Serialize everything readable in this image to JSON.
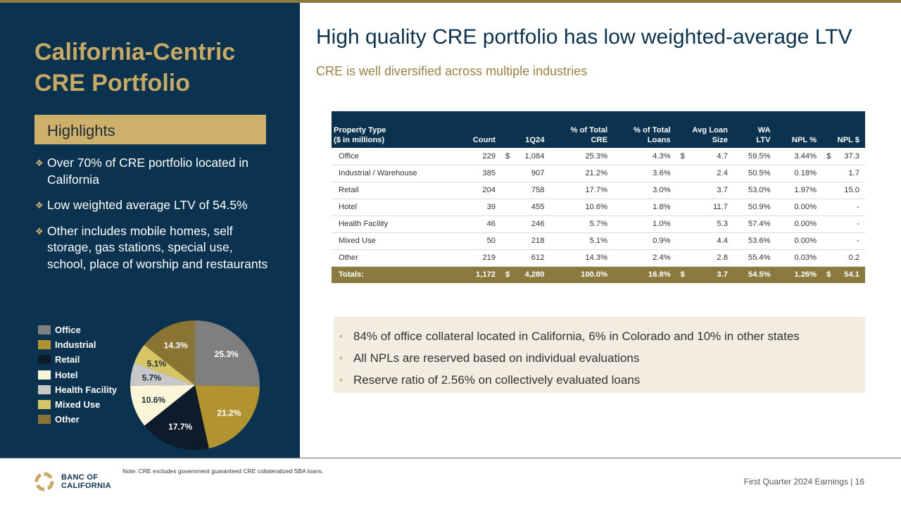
{
  "colors": {
    "navy": "#0b3350",
    "gold": "#cdb06a",
    "dark_gold": "#8a7a40",
    "cream": "#f3ede1"
  },
  "left": {
    "title_line1": "California-Centric",
    "title_line2": "CRE Portfolio",
    "highlights_label": "Highlights",
    "bullets": [
      "Over 70% of CRE portfolio located in California",
      "Low weighted average LTV of 54.5%",
      "Other includes mobile homes, self storage, gas stations, special use, school, place of worship and restaurants"
    ]
  },
  "chart_data": {
    "type": "pie",
    "title": "",
    "slices": [
      {
        "label": "Office",
        "value": 25.3,
        "display": "25.3%",
        "color": "#7f7f7f",
        "text_color": "#ffffff"
      },
      {
        "label": "Industrial",
        "value": 21.2,
        "display": "21.2%",
        "color": "#b1942f",
        "text_color": "#ffffff"
      },
      {
        "label": "Retail",
        "value": 17.7,
        "display": "17.7%",
        "color": "#0d1b2a",
        "text_color": "#ffffff"
      },
      {
        "label": "Hotel",
        "value": 10.6,
        "display": "10.6%",
        "color": "#fdf5d7",
        "text_color": "#1b2b3a"
      },
      {
        "label": "Health Facility",
        "value": 5.7,
        "display": "5.7%",
        "color": "#c8c8c8",
        "text_color": "#1b2b3a"
      },
      {
        "label": "Mixed Use",
        "value": 5.1,
        "display": "5.1%",
        "color": "#d8c564",
        "text_color": "#1b2b3a"
      },
      {
        "label": "Other",
        "value": 14.3,
        "display": "14.3%",
        "color": "#8a7434",
        "text_color": "#ffffff"
      }
    ]
  },
  "main": {
    "title": "High quality CRE portfolio has low weighted-average LTV",
    "subtitle": "CRE is well diversified across multiple  industries"
  },
  "table": {
    "headers": {
      "property_line1": "Property Type",
      "property_line2": "($ in millions)",
      "count": "Count",
      "q": "1Q24",
      "pct_cre_line1": "% of Total",
      "pct_cre_line2": "CRE",
      "pct_loans_line1": "% of  Total",
      "pct_loans_line2": "Loans",
      "avg_line1": "Avg Loan",
      "avg_line2": "Size",
      "ltv_line1": "WA",
      "ltv_line2": "LTV",
      "npl_pct": "NPL %",
      "npl_dollar": "NPL $"
    },
    "rows": [
      {
        "name": "Office",
        "count": "229",
        "d1": "$",
        "q": "1,084",
        "pct_cre": "25.3%",
        "pct_loans": "4.3%",
        "d2": "$",
        "avg": "4.7",
        "ltv": "59.5%",
        "npl_pct": "3.44%",
        "d3": "$",
        "npl": "37.3"
      },
      {
        "name": "Industrial / Warehouse",
        "count": "385",
        "d1": "",
        "q": "907",
        "pct_cre": "21.2%",
        "pct_loans": "3.6%",
        "d2": "",
        "avg": "2.4",
        "ltv": "50.5%",
        "npl_pct": "0.18%",
        "d3": "",
        "npl": "1.7"
      },
      {
        "name": "Retail",
        "count": "204",
        "d1": "",
        "q": "758",
        "pct_cre": "17.7%",
        "pct_loans": "3.0%",
        "d2": "",
        "avg": "3.7",
        "ltv": "53.0%",
        "npl_pct": "1.97%",
        "d3": "",
        "npl": "15.0"
      },
      {
        "name": "Hotel",
        "count": "39",
        "d1": "",
        "q": "455",
        "pct_cre": "10.6%",
        "pct_loans": "1.8%",
        "d2": "",
        "avg": "11.7",
        "ltv": "50.9%",
        "npl_pct": "0.00%",
        "d3": "",
        "npl": "-"
      },
      {
        "name": "Health Facility",
        "count": "46",
        "d1": "",
        "q": "246",
        "pct_cre": "5.7%",
        "pct_loans": "1.0%",
        "d2": "",
        "avg": "5.3",
        "ltv": "57.4%",
        "npl_pct": "0.00%",
        "d3": "",
        "npl": "-"
      },
      {
        "name": "Mixed Use",
        "count": "50",
        "d1": "",
        "q": "218",
        "pct_cre": "5.1%",
        "pct_loans": "0.9%",
        "d2": "",
        "avg": "4.4",
        "ltv": "53.6%",
        "npl_pct": "0.00%",
        "d3": "",
        "npl": "-"
      },
      {
        "name": "Other",
        "count": "219",
        "d1": "",
        "q": "612",
        "pct_cre": "14.3%",
        "pct_loans": "2.4%",
        "d2": "",
        "avg": "2.8",
        "ltv": "55.4%",
        "npl_pct": "0.03%",
        "d3": "",
        "npl": "0.2"
      }
    ],
    "totals": {
      "name": "Totals:",
      "count": "1,172",
      "d1": "$",
      "q": "4,280",
      "pct_cre": "100.0%",
      "pct_loans": "16.8%",
      "d2": "$",
      "avg": "3.7",
      "ltv": "54.5%",
      "npl_pct": "1.26%",
      "d3": "$",
      "npl": "54.1"
    }
  },
  "notes": [
    "84% of office collateral located in California, 6% in Colorado and 10% in other states",
    "All NPLs are reserved based on individual evaluations",
    "Reserve ratio of 2.56% on collectively evaluated loans"
  ],
  "footer": {
    "note": "Note: CRE excludes government guaranteed  CRE collateralized SBA loans.",
    "logo_line1": "BANC OF",
    "logo_line2": "CALIFORNIA",
    "page": "First Quarter 2024 Earnings |  16"
  }
}
